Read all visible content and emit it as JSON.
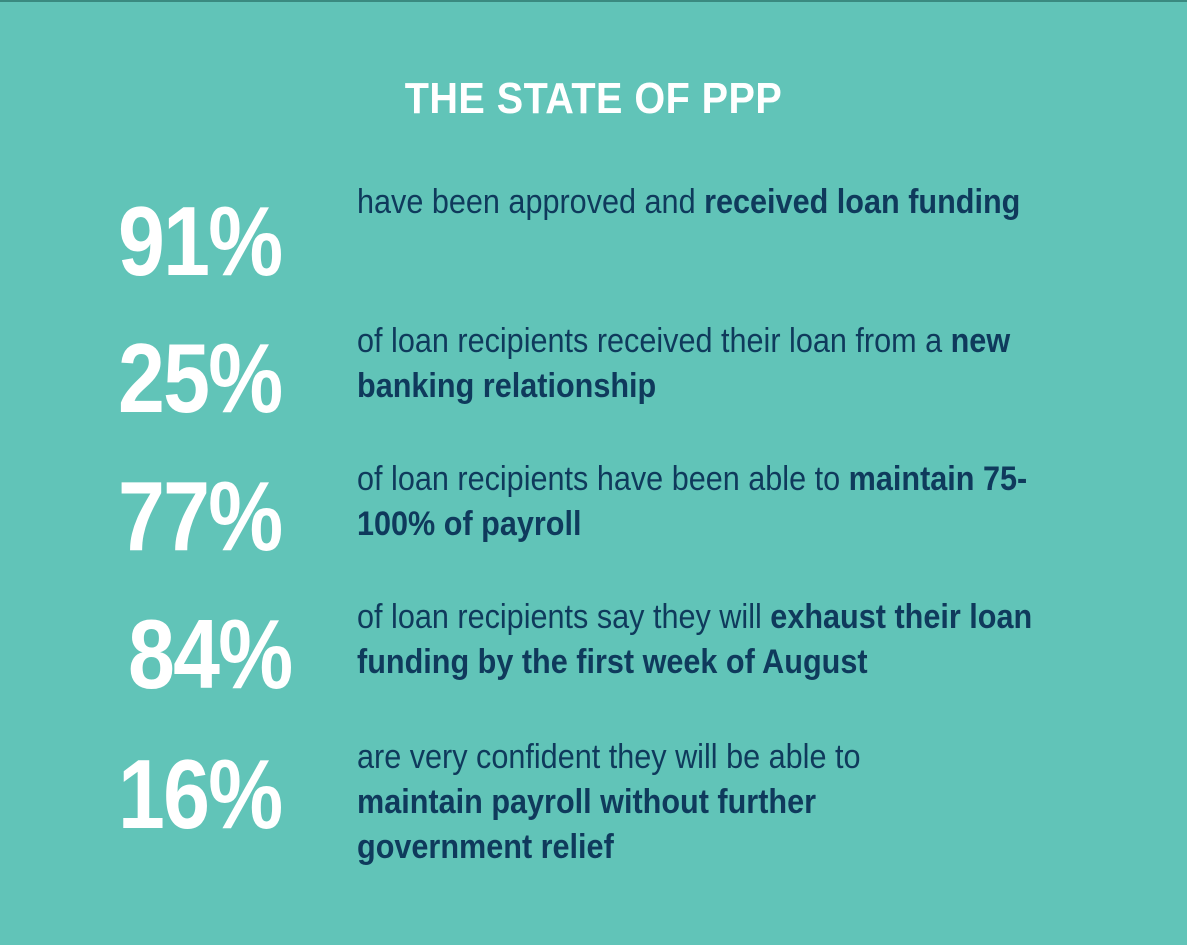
{
  "title": "THE STATE OF PPP",
  "stats": [
    {
      "value": "91%",
      "text_regular": "have been approved and ",
      "text_bold": "received loan funding"
    },
    {
      "value": "25%",
      "text_regular": "of loan recipients received their loan from a ",
      "text_bold": "new banking relationship"
    },
    {
      "value": "77%",
      "text_regular": "of loan recipients have been able to ",
      "text_bold": "maintain 75-100% of payroll"
    },
    {
      "value": "84%",
      "text_regular": "of loan recipients say they will ",
      "text_bold": "exhaust their loan funding by the first week of August"
    },
    {
      "value": "16%",
      "text_regular": "are very confident they will be able to ",
      "text_bold": "maintain payroll without further government relief"
    }
  ],
  "colors": {
    "background": "#61c4b8",
    "number": "#ffffff",
    "text": "#0f3a5c"
  }
}
